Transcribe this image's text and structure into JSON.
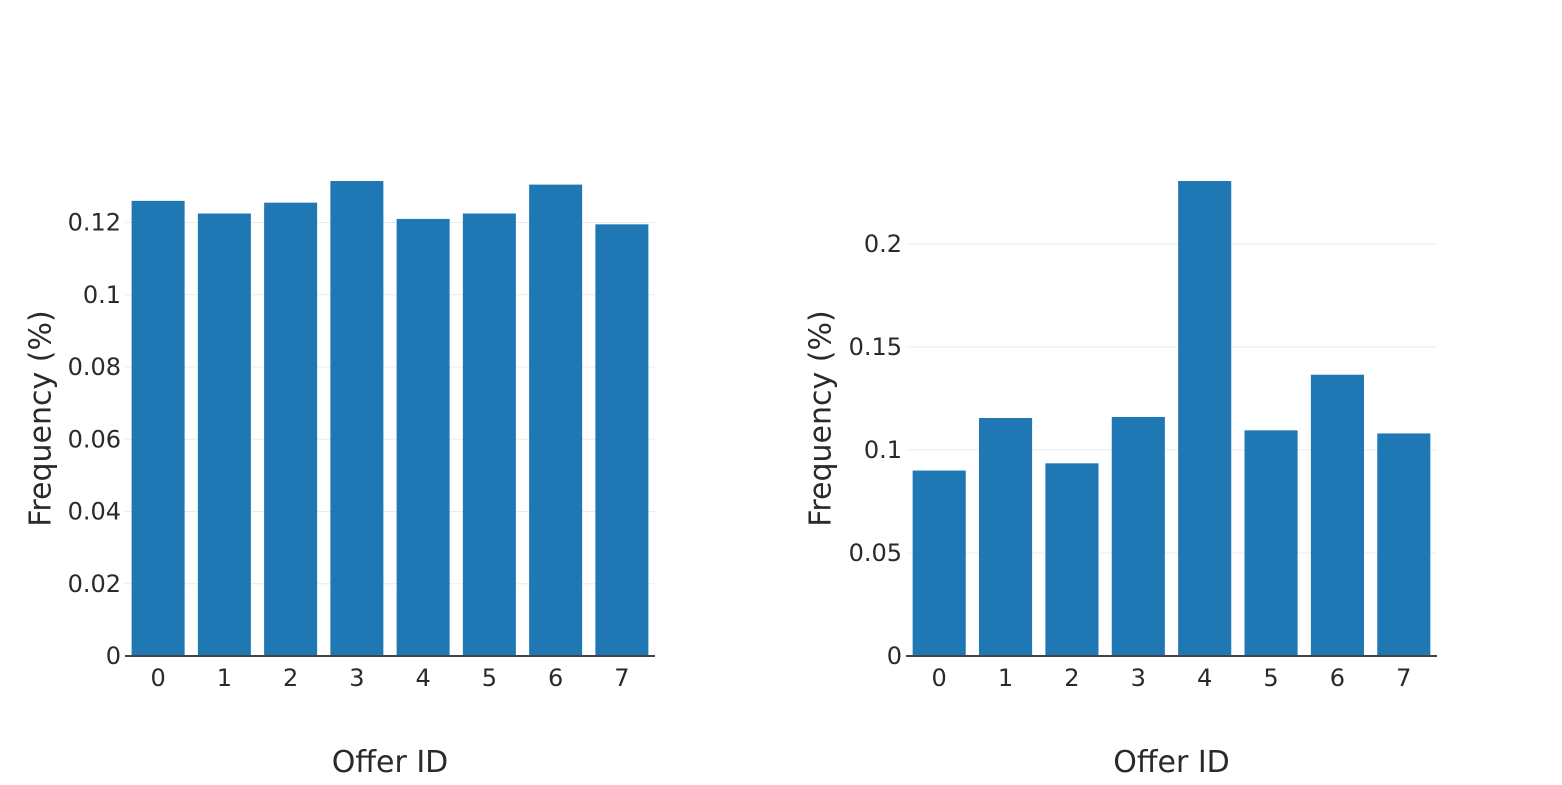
{
  "chart_data": [
    {
      "type": "bar",
      "title": "",
      "xlabel": "Offer ID",
      "ylabel": "Frequency (%)",
      "categories": [
        "0",
        "1",
        "2",
        "3",
        "4",
        "5",
        "6",
        "7"
      ],
      "values": [
        0.126,
        0.1225,
        0.1255,
        0.1315,
        0.121,
        0.1225,
        0.1305,
        0.1195
      ],
      "ylim": [
        0,
        0.1315
      ],
      "yticks": [
        0,
        0.02,
        0.04,
        0.06,
        0.08,
        0.1,
        0.12
      ],
      "ytick_labels": [
        "0",
        "0.02",
        "0.04",
        "0.06",
        "0.08",
        "0.1",
        "0.12"
      ],
      "grid": true,
      "bar_color": "#1f77b4"
    },
    {
      "type": "bar",
      "title": "",
      "xlabel": "Offer ID",
      "ylabel": "Frequency (%)",
      "categories": [
        "0",
        "1",
        "2",
        "3",
        "4",
        "5",
        "6",
        "7"
      ],
      "values": [
        0.09,
        0.1155,
        0.0935,
        0.116,
        0.2305,
        0.1095,
        0.1365,
        0.108
      ],
      "ylim": [
        0,
        0.2305
      ],
      "yticks": [
        0,
        0.05,
        0.1,
        0.15,
        0.2
      ],
      "ytick_labels": [
        "0",
        "0.05",
        "0.1",
        "0.15",
        "0.2"
      ],
      "grid": true,
      "bar_color": "#1f77b4"
    }
  ]
}
